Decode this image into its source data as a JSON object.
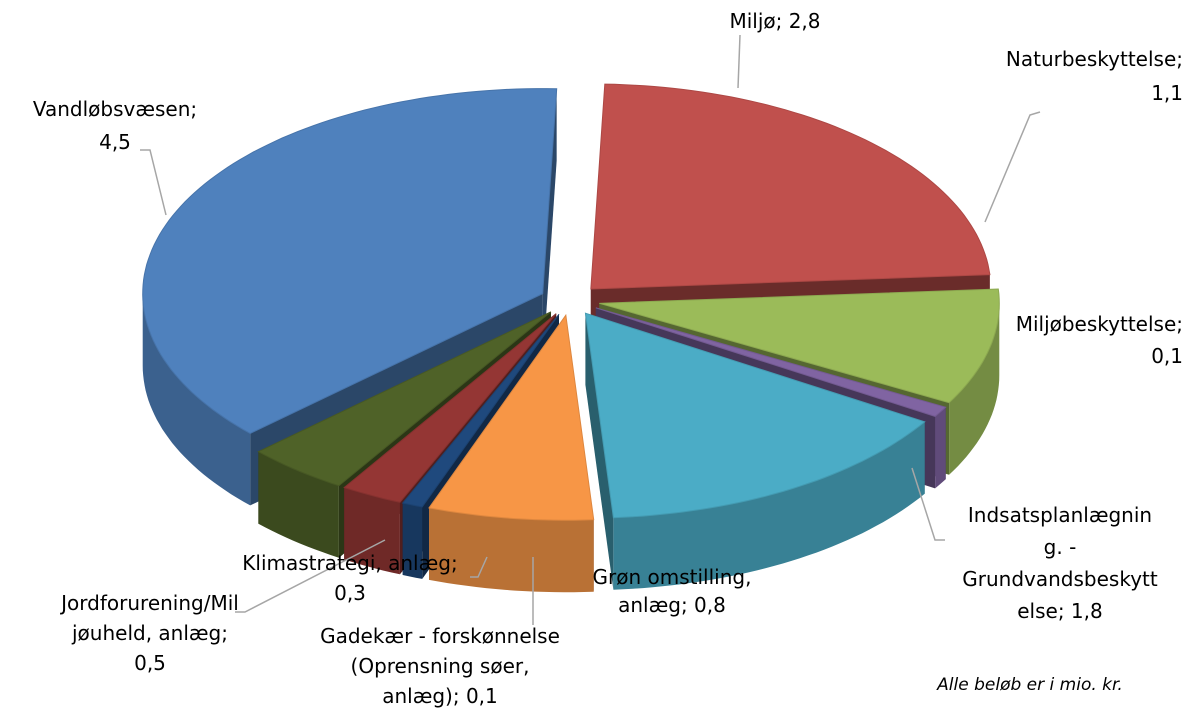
{
  "chart_data": {
    "type": "pie",
    "values": [
      2.8,
      1.1,
      0.1,
      1.8,
      0.8,
      0.1,
      0.3,
      0.5,
      4.5
    ],
    "value_labels": [
      "Miljø; 2,8",
      "Naturbeskyttelse;\n1,1",
      "Miljøbeskyttelse;\n0,1",
      "Indsatsplanlægnin\ng. -\nGrundvandsbeskytt\nelse; 1,8",
      "Grøn omstilling,\nanlæg; 0,8",
      "Gadekær - forskønnelse\n(Oprensning søer,\nanlæg); 0,1",
      "Klimastrategi, anlæg;\n0,3",
      "Jordforurening/Mil\njøuheld, anlæg;\n0,5",
      "Vandløbsvæsen;\n4,5"
    ],
    "colors": [
      "#c0504d",
      "#9bbb59",
      "#8064a2",
      "#4bacc6",
      "#f79646",
      "#1f497d",
      "#943634",
      "#4f6228",
      "#4f81bd"
    ],
    "note": "Alle beløb er i mio. kr."
  }
}
